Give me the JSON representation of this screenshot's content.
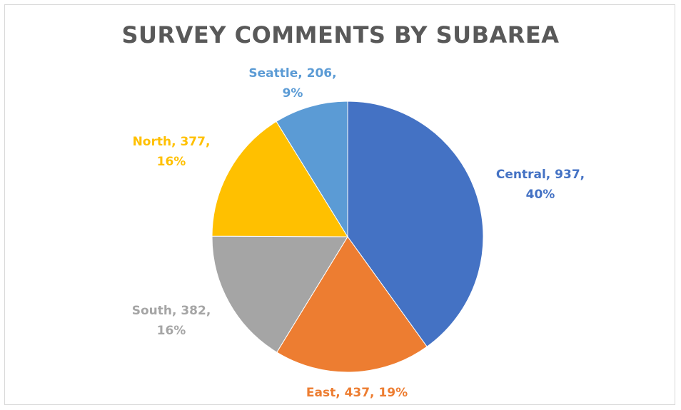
{
  "chart_data": {
    "type": "pie",
    "title": "SURVEY COMMENTS BY SUBAREA",
    "slices": [
      {
        "name": "Central",
        "value": 937,
        "percent": "40%",
        "color": "#4472C4",
        "label_lines": [
          "Central, 937,",
          "40%"
        ]
      },
      {
        "name": "East",
        "value": 437,
        "percent": "19%",
        "color": "#ED7D31",
        "label_lines": [
          "East, 437, 19%"
        ]
      },
      {
        "name": "South",
        "value": 382,
        "percent": "16%",
        "color": "#A5A5A5",
        "label_lines": [
          "South, 382,",
          "16%"
        ]
      },
      {
        "name": "North",
        "value": 377,
        "percent": "16%",
        "color": "#FFC000",
        "label_lines": [
          "North, 377,",
          "16%"
        ]
      },
      {
        "name": "Seattle",
        "value": 206,
        "percent": "9%",
        "color": "#5B9BD5",
        "label_lines": [
          "Seattle, 206,",
          "9%"
        ]
      }
    ],
    "legend": "none"
  }
}
